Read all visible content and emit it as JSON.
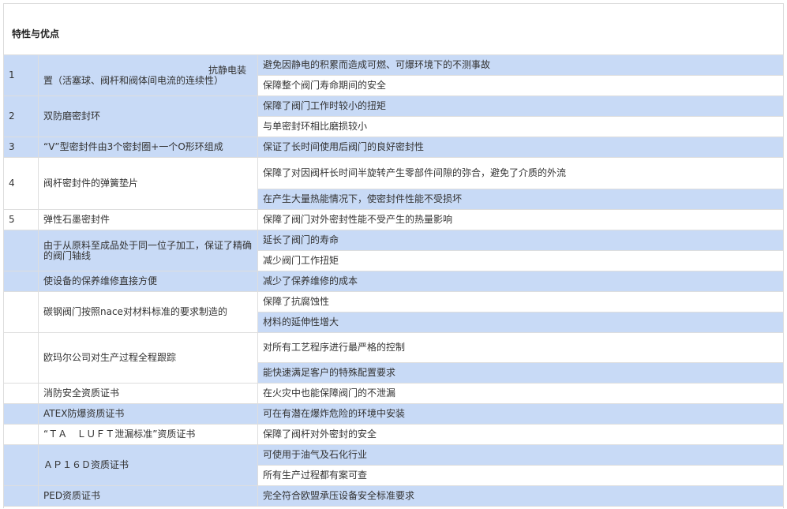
{
  "title": "特性与优点",
  "colors": {
    "highlight": "#c8daf6",
    "border": "#dedede",
    "text": "#333333"
  },
  "rows": [
    {
      "num": "1",
      "feature_first": "抗静电装",
      "feature": "置（活塞球、阀杆和阀体间电流的连续性）",
      "shade": "blue",
      "benefits": [
        {
          "text": "避免因静电的积累而造成可燃、可爆环境下的不测事故",
          "shade": "blue"
        },
        {
          "text": "保障整个阀门寿命期间的安全",
          "shade": "white"
        }
      ]
    },
    {
      "num": "2",
      "feature": "双防磨密封环",
      "shade": "blue",
      "benefits": [
        {
          "text": "保障了阀门工作时较小的扭矩",
          "shade": "blue"
        },
        {
          "text": "与单密封环相比磨损较小",
          "shade": "white"
        }
      ]
    },
    {
      "num": "3",
      "feature": "“V”型密封件由3个密封圈+一个O形环组成",
      "shade": "blue",
      "benefits": [
        {
          "text": "保证了长时间使用后阀门的良好密封性",
          "shade": "blue"
        }
      ]
    },
    {
      "num": "4",
      "feature": "阀杆密封件的弹簧垫片",
      "shade": "white",
      "benefits": [
        {
          "text": "保障了对因阀杆长时间半旋转产生零部件间隙的弥合，避免了介质的外流",
          "shade": "white"
        },
        {
          "text": "在产生大量热能情况下，使密封件性能不受损坏",
          "shade": "blue"
        }
      ]
    },
    {
      "num": "5",
      "feature": "弹性石墨密封件",
      "shade": "white",
      "benefits": [
        {
          "text": "保障了阀门对外密封性能不受产生的热量影响",
          "shade": "white"
        }
      ]
    },
    {
      "num": "",
      "feature": "由于从原料至成品处于同一位子加工，保证了精确的阀门轴线",
      "shade": "blue",
      "benefits": [
        {
          "text": "延长了阀门的寿命",
          "shade": "blue"
        },
        {
          "text": "减少阀门工作扭矩",
          "shade": "white"
        }
      ]
    },
    {
      "num": "",
      "feature": "使设备的保养维修直接方便",
      "shade": "blue",
      "benefits": [
        {
          "text": "减少了保养维修的成本",
          "shade": "blue"
        }
      ]
    },
    {
      "num": "",
      "feature": "碳钢阀门按照nace对材料标准的要求制造的",
      "shade": "white",
      "benefits": [
        {
          "text": "保障了抗腐蚀性",
          "shade": "white"
        },
        {
          "text": "材料的延伸性增大",
          "shade": "blue"
        }
      ]
    },
    {
      "num": "",
      "feature": "欧玛尔公司对生产过程全程跟踪",
      "shade": "white",
      "benefits": [
        {
          "text": "对所有工艺程序进行最严格的控制",
          "shade": "white"
        },
        {
          "text": "能快速满足客户的特殊配置要求",
          "shade": "blue"
        }
      ]
    },
    {
      "num": "",
      "feature": "消防安全资质证书",
      "shade": "white",
      "benefits": [
        {
          "text": "在火灾中也能保障阀门的不泄漏",
          "shade": "white"
        }
      ]
    },
    {
      "num": "",
      "feature": "ATEX防爆资质证书",
      "shade": "blue",
      "benefits": [
        {
          "text": "可在有潜在爆炸危险的环境中安装",
          "shade": "blue"
        }
      ]
    },
    {
      "num": "",
      "feature": "“ＴＡ　ＬＵＦＴ泄漏标准”资质证书",
      "shade": "white",
      "benefits": [
        {
          "text": "保障了阀杆对外密封的安全",
          "shade": "white"
        }
      ]
    },
    {
      "num": "",
      "feature": "ＡＰ１６Ｄ资质证书",
      "shade": "blue",
      "benefits": [
        {
          "text": "可使用于油气及石化行业",
          "shade": "blue"
        },
        {
          "text": "所有生产过程都有案可查",
          "shade": "white"
        }
      ]
    },
    {
      "num": "",
      "feature": "PED资质证书",
      "shade": "blue",
      "benefits": [
        {
          "text": "完全符合欧盟承压设备安全标准要求",
          "shade": "blue"
        }
      ]
    }
  ]
}
